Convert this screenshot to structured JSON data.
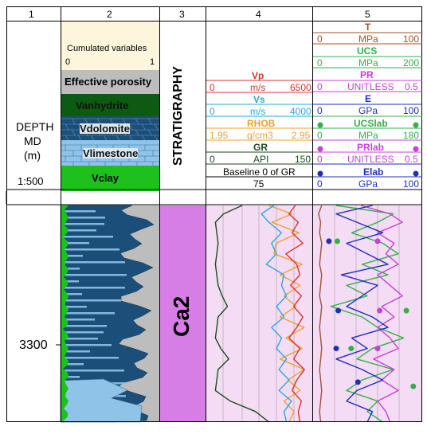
{
  "columns": [
    "1",
    "2",
    "3",
    "4",
    "5"
  ],
  "depth_header": {
    "title_line1": "DEPTH",
    "title_line2": "MD",
    "title_line3": "(m)",
    "scale": "1:500",
    "tick_label": "3300"
  },
  "col2_header": {
    "cumulated_title": "Cumulated variables",
    "scale_min": "0",
    "scale_max": "1",
    "layers": [
      {
        "label": "Effective porosity",
        "color": "#bdbdbd"
      },
      {
        "label": "Vanhydrite",
        "color": "#0d5a12"
      },
      {
        "label": "Vdolomite",
        "color": "#1b4f7a"
      },
      {
        "label": "Vlimestone",
        "color": "#8fc3e8"
      },
      {
        "label": "Vclay",
        "color": "#39b54a"
      }
    ]
  },
  "col3": {
    "header": "STRATIGRAPHY",
    "unit": "Ca2",
    "unit_color": "#d77ee6"
  },
  "col4_header": {
    "curves": [
      {
        "name": "Vp",
        "unit": "m/s",
        "min": "0",
        "max": "6500",
        "color": "#d9342b"
      },
      {
        "name": "Vs",
        "unit": "m/s",
        "min": "0",
        "max": "4000",
        "color": "#2aa7e0"
      },
      {
        "name": "RHOB",
        "unit": "g/cm3",
        "min": "1.95",
        "max": "2.95",
        "color": "#f0a030"
      },
      {
        "name": "GR",
        "unit": "API",
        "min": "0",
        "max": "150",
        "color": "#1a4a1a"
      }
    ],
    "baseline_text": "Baseline 0 of GR",
    "baseline_value": "75"
  },
  "col5_header": {
    "curves": [
      {
        "name": "T",
        "unit": "MPa",
        "min": "0",
        "max": "100",
        "color": "#a0522d"
      },
      {
        "name": "UCS",
        "unit": "MPa",
        "min": "0",
        "max": "200",
        "color": "#2fb14a"
      },
      {
        "name": "PR",
        "unit": "UNITLESS",
        "min": "0",
        "max": "0.5",
        "color": "#c441d6"
      },
      {
        "name": "E",
        "unit": "GPa",
        "min": "0",
        "max": "100",
        "color": "#1f2fb8"
      },
      {
        "name": "UCSlab",
        "unit": "MPa",
        "min": "0",
        "max": "180",
        "color": "#2fb14a"
      },
      {
        "name": "PRlab",
        "unit": "UNITLESS",
        "min": "0",
        "max": "0.5",
        "color": "#c441d6"
      },
      {
        "name": "Elab",
        "unit": "GPa",
        "min": "0",
        "max": "100",
        "color": "#1f2fb8"
      }
    ]
  },
  "chart_data": {
    "type": "line",
    "depth_range_m": [
      3262,
      3365
    ],
    "depth_tick": 3300,
    "series": [
      {
        "name": "GR",
        "unit": "API",
        "scale": [
          0,
          150
        ],
        "color": "#1a4a1a",
        "depth": [
          3262,
          3266,
          3270,
          3275,
          3280,
          3285,
          3290,
          3295,
          3300,
          3305,
          3310,
          3315,
          3320,
          3325,
          3330,
          3335,
          3340,
          3345,
          3350,
          3355,
          3360,
          3365
        ],
        "values": [
          50,
          22,
          10,
          12,
          14,
          12,
          10,
          12,
          14,
          20,
          28,
          14,
          12,
          10,
          18,
          30,
          14,
          12,
          10,
          32,
          70,
          90
        ]
      },
      {
        "name": "RHOB",
        "unit": "g/cm3",
        "scale": [
          1.95,
          2.95
        ],
        "color": "#f0a030",
        "depth": [
          3262,
          3266,
          3270,
          3275,
          3280,
          3285,
          3290,
          3295,
          3300,
          3305,
          3310,
          3315,
          3320,
          3325,
          3330,
          3335,
          3340,
          3345,
          3350,
          3355,
          3360,
          3365
        ],
        "values": [
          2.55,
          2.78,
          2.58,
          2.85,
          2.62,
          2.6,
          2.88,
          2.66,
          2.86,
          2.7,
          2.82,
          2.66,
          2.9,
          2.72,
          2.88,
          2.66,
          2.9,
          2.74,
          2.86,
          2.7,
          2.8,
          2.75
        ]
      },
      {
        "name": "Vs",
        "unit": "m/s",
        "scale": [
          0,
          4000
        ],
        "color": "#2aa7e0",
        "depth": [
          3262,
          3266,
          3270,
          3275,
          3280,
          3285,
          3290,
          3295,
          3300,
          3305,
          3310,
          3315,
          3320,
          3325,
          3330,
          3335,
          3340,
          3345,
          3350,
          3355,
          3360,
          3365
        ],
        "values": [
          2600,
          2100,
          2400,
          2900,
          2500,
          2700,
          2300,
          3000,
          2900,
          3100,
          2700,
          3000,
          2500,
          2900,
          2700,
          3100,
          2800,
          3200,
          2800,
          3300,
          3000,
          3100
        ]
      },
      {
        "name": "Vp",
        "unit": "m/s",
        "scale": [
          0,
          6500
        ],
        "color": "#d9342b",
        "depth": [
          3262,
          3266,
          3270,
          3275,
          3280,
          3285,
          3290,
          3295,
          3300,
          3305,
          3310,
          3315,
          3320,
          3325,
          3330,
          3335,
          3340,
          3345,
          3350,
          3355,
          3360,
          3365
        ],
        "values": [
          5600,
          5200,
          5800,
          5400,
          6100,
          5000,
          5700,
          5900,
          5300,
          6000,
          5500,
          6100,
          5700,
          5200,
          5900,
          5500,
          6200,
          5700,
          5400,
          6000,
          5800,
          5900
        ]
      },
      {
        "name": "T",
        "unit": "MPa",
        "scale": [
          0,
          100
        ],
        "color": "#a0522d",
        "depth": [
          3262,
          3266,
          3270,
          3275,
          3280,
          3285,
          3290,
          3295,
          3300,
          3305,
          3310,
          3315,
          3320,
          3325,
          3330,
          3335,
          3340,
          3345,
          3350,
          3355,
          3360,
          3365
        ],
        "values": [
          6,
          3,
          5,
          4,
          6,
          5,
          4,
          6,
          5,
          4,
          6,
          5,
          4,
          5,
          6,
          5,
          4,
          5,
          6,
          5,
          4,
          5
        ]
      },
      {
        "name": "UCS",
        "unit": "MPa",
        "scale": [
          0,
          200
        ],
        "color": "#2fb14a",
        "depth": [
          3262,
          3266,
          3270,
          3275,
          3280,
          3285,
          3290,
          3295,
          3300,
          3305,
          3310,
          3315,
          3320,
          3325,
          3330,
          3335,
          3340,
          3345,
          3350,
          3355,
          3360,
          3365
        ],
        "values": [
          40,
          150,
          120,
          70,
          130,
          160,
          90,
          140,
          60,
          100,
          30,
          90,
          120,
          170,
          110,
          80,
          150,
          90,
          60,
          120,
          100,
          130
        ]
      },
      {
        "name": "PR",
        "unit": "UNITLESS",
        "scale": [
          0,
          0.5
        ],
        "color": "#c441d6",
        "depth": [
          3262,
          3266,
          3270,
          3275,
          3280,
          3285,
          3290,
          3295,
          3300,
          3305,
          3310,
          3315,
          3320,
          3325,
          3330,
          3335,
          3340,
          3345,
          3350,
          3355,
          3360,
          3365
        ],
        "values": [
          0.22,
          0.36,
          0.42,
          0.3,
          0.38,
          0.34,
          0.4,
          0.3,
          0.36,
          0.42,
          0.32,
          0.38,
          0.3,
          0.36,
          0.4,
          0.28,
          0.38,
          0.32,
          0.4,
          0.3,
          0.34,
          0.36
        ]
      },
      {
        "name": "E",
        "unit": "GPa",
        "scale": [
          0,
          100
        ],
        "color": "#1f2fb8",
        "depth": [
          3262,
          3266,
          3270,
          3275,
          3280,
          3285,
          3290,
          3295,
          3300,
          3305,
          3310,
          3315,
          3320,
          3325,
          3330,
          3335,
          3340,
          3345,
          3350,
          3355,
          3360,
          3365
        ],
        "values": [
          55,
          20,
          40,
          65,
          30,
          50,
          70,
          25,
          60,
          45,
          30,
          55,
          70,
          35,
          50,
          20,
          45,
          65,
          40,
          30,
          55,
          50
        ]
      },
      {
        "name": "UCSlab",
        "unit": "MPa",
        "scale": [
          0,
          180
        ],
        "color": "#2fb14a",
        "marker": "dot",
        "depth": [
          3279,
          3312,
          3330,
          3348
        ],
        "values": [
          38,
          158,
          62,
          170
        ]
      },
      {
        "name": "PRlab",
        "unit": "UNITLESS",
        "scale": [
          0,
          0.5
        ],
        "color": "#c441d6",
        "marker": "dot",
        "depth": [
          3279,
          3312,
          3330
        ],
        "values": [
          0.3,
          0.31,
          0.3
        ]
      },
      {
        "name": "Elab",
        "unit": "GPa",
        "scale": [
          0,
          100
        ],
        "color": "#1f2fb8",
        "marker": "dot",
        "depth": [
          3279,
          3312,
          3330,
          3346
        ],
        "values": [
          13,
          22,
          20,
          41
        ]
      }
    ],
    "xlabel": "",
    "ylabel": "DEPTH MD (m)"
  }
}
